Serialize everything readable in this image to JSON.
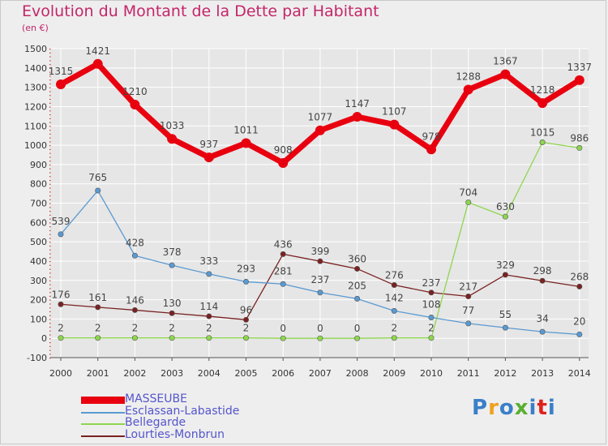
{
  "title": "Evolution du Montant de la Dette par Habitant",
  "unit_label": "(en €)",
  "logo_text": "Proxiti",
  "colors": {
    "title": "#c3266a",
    "grid": "#ffffff",
    "axis_text": "#333333",
    "legend_text": "#5555cc"
  },
  "chart_data": {
    "type": "line",
    "title": "Evolution du Montant de la Dette par Habitant",
    "ylabel": "(en €)",
    "ylim": [
      -100,
      1500
    ],
    "yticks": [
      -100,
      0,
      100,
      200,
      300,
      400,
      500,
      600,
      700,
      800,
      900,
      1000,
      1100,
      1200,
      1300,
      1400,
      1500
    ],
    "x": [
      2000,
      2001,
      2002,
      2003,
      2004,
      2005,
      2006,
      2007,
      2008,
      2009,
      2010,
      2011,
      2012,
      2013,
      2014
    ],
    "grid": true,
    "legend_position": "bottom-left",
    "series": [
      {
        "name": "MASSEUBE",
        "color": "#e8000f",
        "values": [
          1315,
          1421,
          1210,
          1033,
          937,
          1011,
          908,
          1077,
          1147,
          1107,
          978,
          1288,
          1367,
          1218,
          1337
        ],
        "labels": [
          "1315",
          "1421",
          "1210",
          "1033",
          "937",
          "1011",
          "908",
          "1077",
          "1147",
          "1107",
          "978",
          "1288",
          "1367",
          "1218",
          "1337"
        ]
      },
      {
        "name": "Esclassan-Labastide",
        "color": "#5a9ad2",
        "values": [
          539,
          765,
          428,
          378,
          333,
          293,
          281,
          237,
          205,
          142,
          108,
          77,
          55,
          34,
          20
        ],
        "labels": [
          "539",
          "765",
          "428",
          "378",
          "333",
          "293",
          "281",
          "237",
          "205",
          "142",
          "108",
          "77",
          "55",
          "34",
          "20"
        ]
      },
      {
        "name": "Bellegarde",
        "color": "#8ed64e",
        "values": [
          2,
          2,
          2,
          2,
          2,
          2,
          0,
          0,
          0,
          2,
          2,
          704,
          630,
          1015,
          986
        ],
        "labels": [
          "2",
          "2",
          "2",
          "2",
          "2",
          "2",
          "0",
          "0",
          "0",
          "2",
          "2",
          "704",
          "630",
          "1015",
          "986"
        ]
      },
      {
        "name": "Lourties-Monbrun",
        "color": "#7a2222",
        "values": [
          176,
          161,
          146,
          130,
          114,
          96,
          436,
          399,
          360,
          276,
          237,
          217,
          329,
          298,
          268
        ],
        "labels": [
          "176",
          "161",
          "146",
          "130",
          "114",
          "96",
          "436",
          "399",
          "360",
          "276",
          "237",
          "217",
          "329",
          "298",
          "268"
        ]
      }
    ]
  }
}
